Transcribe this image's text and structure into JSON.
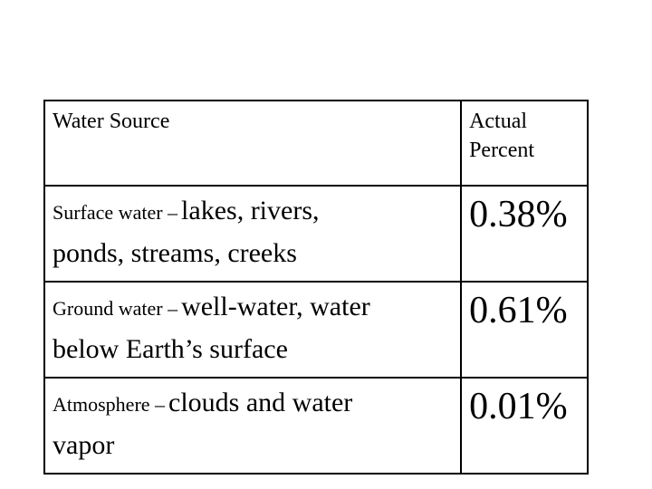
{
  "table": {
    "headers": {
      "source": "Water Source",
      "percent_line1": "Actual",
      "percent_line2": "Percent"
    },
    "rows": [
      {
        "category": "Surface water –",
        "detail_line1": "lakes, rivers,",
        "detail_line2": "ponds, streams, creeks",
        "percent": "0.38%"
      },
      {
        "category": "Ground water –",
        "detail_line1": "well-water, water",
        "detail_line2": "below Earth’s surface",
        "percent": "0.61%"
      },
      {
        "category": "Atmosphere –",
        "detail_line1": "clouds and water",
        "detail_line2": "vapor",
        "percent": "0.01%"
      }
    ]
  }
}
